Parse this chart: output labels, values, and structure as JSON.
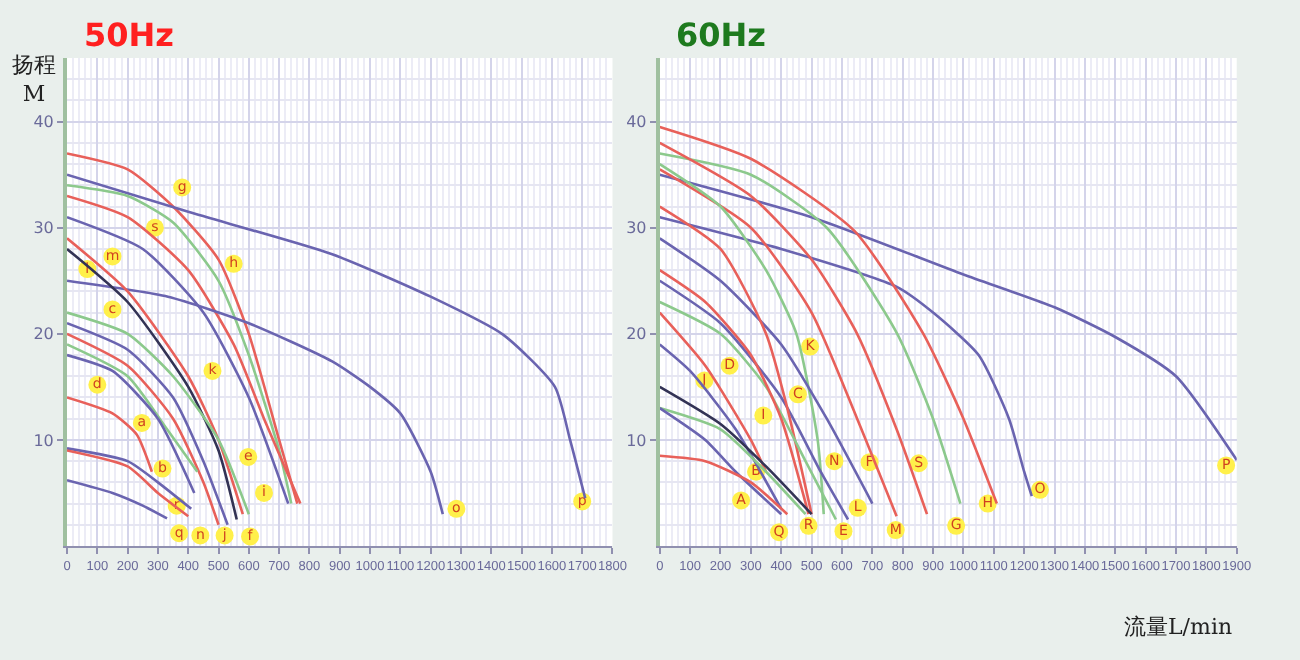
{
  "chart_data": [
    {
      "type": "line",
      "title": "50Hz",
      "ylabel": "扬程 M",
      "xlim": [
        0,
        1800
      ],
      "xticks": [
        0,
        100,
        200,
        300,
        400,
        500,
        600,
        700,
        800,
        900,
        1000,
        1100,
        1200,
        1300,
        1400,
        1500,
        1600,
        1700,
        1800
      ],
      "ylim": [
        0,
        46
      ],
      "yticks": [
        10,
        20,
        30,
        40
      ],
      "grid": true,
      "marker": "none",
      "line_style": "solid",
      "series": [
        {
          "color": "#e8605a",
          "x": [
            0,
            200,
            350,
            500,
            600,
            700,
            760
          ],
          "values": [
            37,
            35.5,
            32,
            27,
            20,
            10,
            4
          ]
        },
        {
          "color": "#6a64b0",
          "x": [
            0,
            400,
            875,
            1200,
            1440,
            1610,
            1660,
            1710
          ],
          "values": [
            35,
            31.5,
            27.5,
            23.5,
            19.9,
            15,
            10,
            4.5
          ]
        },
        {
          "color": "#8cc98c",
          "x": [
            0,
            200,
            350,
            500,
            600,
            700,
            740
          ],
          "values": [
            34,
            33,
            30.5,
            25,
            18,
            9,
            4
          ]
        },
        {
          "color": "#e8605a",
          "x": [
            0,
            200,
            400,
            550,
            650,
            770
          ],
          "values": [
            33,
            31,
            26,
            19,
            12,
            4
          ]
        },
        {
          "color": "#6a64b0",
          "x": [
            0,
            250,
            450,
            600,
            730
          ],
          "values": [
            31,
            28,
            22,
            14,
            4
          ]
        },
        {
          "color": "#6a64b0",
          "x": [
            0,
            333,
            600,
            875,
            1000,
            1100,
            1200,
            1240
          ],
          "values": [
            25,
            23.5,
            21,
            17.4,
            15,
            12.5,
            7,
            3
          ]
        },
        {
          "color": "#e8605a",
          "x": [
            0,
            200,
            400,
            500,
            580
          ],
          "values": [
            29,
            24,
            16,
            10,
            3
          ]
        },
        {
          "color": "#333355",
          "x": [
            0,
            200,
            400,
            500,
            560
          ],
          "values": [
            28,
            23,
            15,
            9,
            2.5
          ]
        },
        {
          "color": "#8cc98c",
          "x": [
            0,
            200,
            350,
            500,
            600
          ],
          "values": [
            22,
            20,
            16,
            10,
            3
          ]
        },
        {
          "color": "#6a64b0",
          "x": [
            0,
            200,
            350,
            450,
            530
          ],
          "values": [
            21,
            18.5,
            14,
            8,
            2
          ]
        },
        {
          "color": "#e8605a",
          "x": [
            0,
            200,
            350,
            450,
            500
          ],
          "values": [
            20,
            17,
            12,
            6,
            2
          ]
        },
        {
          "color": "#8cc98c",
          "x": [
            0,
            200,
            330,
            430
          ],
          "values": [
            19,
            16,
            11,
            7
          ]
        },
        {
          "color": "#6a64b0",
          "x": [
            0,
            150,
            300,
            420
          ],
          "values": [
            18,
            16.5,
            12,
            5
          ]
        },
        {
          "color": "#e8605a",
          "x": [
            0,
            150,
            230,
            280
          ],
          "values": [
            14,
            12.5,
            10.5,
            7
          ]
        },
        {
          "color": "#6a64b0",
          "x": [
            0,
            200,
            300,
            410
          ],
          "values": [
            9.2,
            8,
            6,
            3.5
          ]
        },
        {
          "color": "#e8605a",
          "x": [
            0,
            200,
            300,
            400
          ],
          "values": [
            9,
            7.5,
            5,
            2.8
          ]
        },
        {
          "color": "#6a64b0",
          "x": [
            0,
            150,
            250,
            330
          ],
          "values": [
            6.2,
            5,
            3.8,
            2.6
          ]
        }
      ],
      "annotations": [
        {
          "text": "h",
          "x": 550,
          "y": 26.6
        },
        {
          "text": "p",
          "x": 1700,
          "y": 4.2
        },
        {
          "text": "g",
          "x": 380,
          "y": 33.8
        },
        {
          "text": "s",
          "x": 290,
          "y": 30
        },
        {
          "text": "m",
          "x": 150,
          "y": 27.3
        },
        {
          "text": "l",
          "x": 67,
          "y": 26.1
        },
        {
          "text": "o",
          "x": 1285,
          "y": 3.5
        },
        {
          "text": "k",
          "x": 480,
          "y": 16.5
        },
        {
          "text": "e",
          "x": 598,
          "y": 8.4
        },
        {
          "text": "f",
          "x": 604,
          "y": 0.9
        },
        {
          "text": "j",
          "x": 520,
          "y": 1
        },
        {
          "text": "n",
          "x": 440,
          "y": 1
        },
        {
          "text": "i",
          "x": 650,
          "y": 5
        },
        {
          "text": "b",
          "x": 315,
          "y": 7.3
        },
        {
          "text": "a",
          "x": 247,
          "y": 11.6
        },
        {
          "text": "d",
          "x": 100,
          "y": 15.2
        },
        {
          "text": "c",
          "x": 150,
          "y": 22.3
        },
        {
          "text": "r",
          "x": 362,
          "y": 3.8
        },
        {
          "text": "q",
          "x": 370,
          "y": 1.2
        }
      ]
    },
    {
      "type": "line",
      "title": "60Hz",
      "xlabel": "流量L/min",
      "xlim": [
        0,
        1900
      ],
      "xticks": [
        0,
        100,
        200,
        300,
        400,
        500,
        600,
        700,
        800,
        900,
        1000,
        1100,
        1200,
        1300,
        1400,
        1500,
        1600,
        1700,
        1800,
        1900
      ],
      "ylim": [
        0,
        46
      ],
      "yticks": [
        10,
        20,
        30,
        40
      ],
      "grid": true,
      "marker": "none",
      "line_style": "solid",
      "series": [
        {
          "color": "#6a64b0",
          "x": [
            0,
            500,
            1000,
            1300,
            1500,
            1700,
            1900
          ],
          "values": [
            35,
            31,
            25.6,
            22.5,
            19.7,
            16,
            8.1
          ]
        },
        {
          "color": "#6a64b0",
          "x": [
            0,
            400,
            782,
            900,
            1050,
            1150,
            1200,
            1225
          ],
          "values": [
            31,
            28,
            24.4,
            22,
            18,
            12,
            7,
            4.7
          ]
        },
        {
          "color": "#e8605a",
          "x": [
            0,
            300,
            641,
            868,
            1000,
            1110
          ],
          "values": [
            39.5,
            36.5,
            29.7,
            20,
            12,
            4
          ]
        },
        {
          "color": "#8cc98c",
          "x": [
            0,
            300,
            550,
            782,
            900,
            990
          ],
          "values": [
            37,
            35,
            30,
            20,
            12,
            4
          ]
        },
        {
          "color": "#e8605a",
          "x": [
            0,
            300,
            500,
            650,
            780,
            880
          ],
          "values": [
            38,
            33,
            27,
            20,
            11,
            3
          ]
        },
        {
          "color": "#e8605a",
          "x": [
            0,
            300,
            500,
            650,
            780
          ],
          "values": [
            35.5,
            30,
            22,
            12,
            2.8
          ]
        },
        {
          "color": "#8cc98c",
          "x": [
            0,
            200,
            350,
            450,
            520,
            540
          ],
          "values": [
            36,
            32,
            26,
            20,
            10,
            3
          ]
        },
        {
          "color": "#6a64b0",
          "x": [
            0,
            200,
            400,
            550,
            700
          ],
          "values": [
            29,
            25,
            19,
            12,
            4
          ]
        },
        {
          "color": "#6a64b0",
          "x": [
            0,
            200,
            400,
            530,
            620
          ],
          "values": [
            25,
            21,
            14,
            7,
            2.5
          ]
        },
        {
          "color": "#e8605a",
          "x": [
            0,
            200,
            350,
            420,
            500
          ],
          "values": [
            32,
            28,
            20,
            13,
            3
          ]
        },
        {
          "color": "#8cc98c",
          "x": [
            0,
            200,
            350,
            480,
            580
          ],
          "values": [
            23,
            20,
            15,
            8,
            2.5
          ]
        },
        {
          "color": "#e8605a",
          "x": [
            0,
            150,
            300,
            400,
            490
          ],
          "values": [
            26,
            23,
            18,
            12,
            3
          ]
        },
        {
          "color": "#6a64b0",
          "x": [
            0,
            100,
            250,
            400
          ],
          "values": [
            19,
            16.5,
            11,
            3.5
          ]
        },
        {
          "color": "#e8605a",
          "x": [
            0,
            150,
            300,
            350
          ],
          "values": [
            22,
            17,
            10,
            7
          ]
        },
        {
          "color": "#333355",
          "x": [
            0,
            200,
            350,
            500
          ],
          "values": [
            15,
            11.5,
            7.5,
            3
          ]
        },
        {
          "color": "#8cc98c",
          "x": [
            0,
            200,
            350,
            480
          ],
          "values": [
            13,
            11,
            7,
            3
          ]
        },
        {
          "color": "#6a64b0",
          "x": [
            0,
            150,
            250,
            400
          ],
          "values": [
            13,
            10,
            7,
            3
          ]
        },
        {
          "color": "#e8605a",
          "x": [
            0,
            150,
            300,
            420
          ],
          "values": [
            8.5,
            8,
            6,
            3
          ]
        }
      ],
      "annotations": [
        {
          "text": "P",
          "x": 1865,
          "y": 7.6
        },
        {
          "text": "O",
          "x": 1252,
          "y": 5.3
        },
        {
          "text": "H",
          "x": 1080,
          "y": 4
        },
        {
          "text": "G",
          "x": 976,
          "y": 1.9
        },
        {
          "text": "S",
          "x": 853,
          "y": 7.8
        },
        {
          "text": "M",
          "x": 777,
          "y": 1.5
        },
        {
          "text": "K",
          "x": 495,
          "y": 18.8
        },
        {
          "text": "F",
          "x": 691,
          "y": 7.9
        },
        {
          "text": "L",
          "x": 652,
          "y": 3.6
        },
        {
          "text": "C",
          "x": 455,
          "y": 14.3
        },
        {
          "text": "E",
          "x": 605,
          "y": 1.4
        },
        {
          "text": "D",
          "x": 230,
          "y": 17
        },
        {
          "text": "N",
          "x": 575,
          "y": 8
        },
        {
          "text": "J",
          "x": 147,
          "y": 15.6
        },
        {
          "text": "B",
          "x": 317,
          "y": 7
        },
        {
          "text": "R",
          "x": 490,
          "y": 1.9
        },
        {
          "text": "A",
          "x": 268,
          "y": 4.3
        },
        {
          "text": "Q",
          "x": 393,
          "y": 1.3
        },
        {
          "text": "I",
          "x": 341,
          "y": 12.3
        }
      ]
    }
  ]
}
